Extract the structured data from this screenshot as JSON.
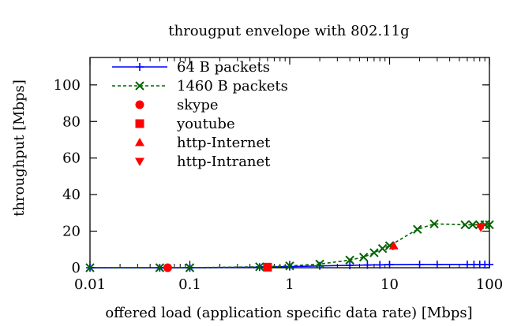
{
  "chart_data": {
    "type": "scatter",
    "title": "througput envelope with 802.11g",
    "xlabel": "offered load (application specific data rate) [Mbps]",
    "ylabel": "throughput [Mbps]",
    "x_scale": "log",
    "xlim": [
      0.01,
      100
    ],
    "ylim": [
      0,
      115
    ],
    "x_ticks": [
      0.01,
      0.1,
      1,
      10,
      100
    ],
    "x_tick_labels": [
      "0.01",
      "0.1",
      "1",
      "10",
      "100"
    ],
    "y_ticks": [
      0,
      20,
      40,
      60,
      80,
      100
    ],
    "y_tick_labels": [
      "0",
      "20",
      "40",
      "60",
      "80",
      "100"
    ],
    "grid": false,
    "legend_position": "top-left",
    "series": [
      {
        "name": "64 B packets",
        "kind": "line",
        "marker": "plus",
        "color": "#0000ff",
        "x": [
          0.01,
          0.05,
          0.1,
          0.5,
          1,
          2,
          4,
          6,
          8,
          10,
          20,
          30,
          60,
          70,
          80,
          90,
          100
        ],
        "y": [
          0,
          0,
          0,
          0.3,
          0.6,
          1.0,
          1.3,
          1.5,
          1.6,
          1.7,
          1.8,
          1.8,
          1.8,
          1.8,
          1.8,
          1.8,
          1.8
        ]
      },
      {
        "name": "1460 B packets",
        "kind": "line",
        "dashed": true,
        "marker": "x",
        "color": "#006400",
        "x": [
          0.01,
          0.05,
          0.1,
          0.5,
          1,
          2,
          4,
          5.5,
          7,
          8.5,
          10,
          19,
          28,
          57,
          68,
          80,
          90,
          100
        ],
        "y": [
          0,
          0,
          0,
          0.5,
          1,
          2,
          4.2,
          5.8,
          8.2,
          10.5,
          12,
          21,
          24,
          23.5,
          23.5,
          23.5,
          23.5,
          23.5
        ]
      },
      {
        "name": "skype",
        "kind": "point",
        "marker": "circle",
        "color": "#ff0000",
        "x": [
          0.06
        ],
        "y": [
          0
        ]
      },
      {
        "name": "youtube",
        "kind": "point",
        "marker": "square",
        "color": "#ff0000",
        "x": [
          0.6
        ],
        "y": [
          0.3
        ]
      },
      {
        "name": "http-Internet",
        "kind": "point",
        "marker": "triangle-up",
        "color": "#ff0000",
        "x": [
          11
        ],
        "y": [
          12
        ]
      },
      {
        "name": "http-Intranet",
        "kind": "point",
        "marker": "triangle-down",
        "color": "#ff0000",
        "x": [
          82
        ],
        "y": [
          22
        ]
      }
    ]
  }
}
